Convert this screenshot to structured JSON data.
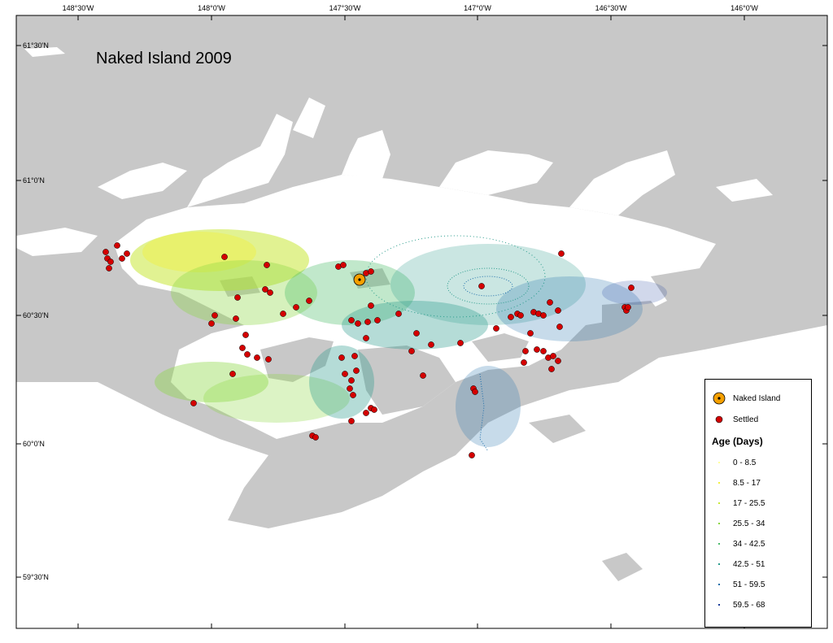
{
  "map": {
    "title": "Naked Island 2009",
    "land_color": "#c8c8c8",
    "water_color": "#ffffff",
    "source_color": "#f5a000",
    "settled_color": "#d40000"
  },
  "axes": {
    "top_ticks": [
      "148°30'W",
      "148°0'W",
      "147°30'W",
      "147°0'W",
      "146°30'W",
      "146°0'W"
    ],
    "left_ticks": [
      "61°30'N",
      "61°0'N",
      "60°30'N",
      "60°0'N",
      "59°30'N"
    ]
  },
  "legend": {
    "source_label": "Naked Island",
    "settled_label": "Settled",
    "age_heading": "Age (Days)",
    "age_classes": [
      {
        "label": "0 - 8.5",
        "color": "#ffffa0"
      },
      {
        "label": "8.5 - 17",
        "color": "#f2f040"
      },
      {
        "label": "17 - 25.5",
        "color": "#c8e838"
      },
      {
        "label": "25.5 - 34",
        "color": "#8ad640"
      },
      {
        "label": "34 - 42.5",
        "color": "#4cbc6a"
      },
      {
        "label": "42.5 - 51",
        "color": "#2a9c8c"
      },
      {
        "label": "51 - 59.5",
        "color": "#1e6eaa"
      },
      {
        "label": "59.5 - 68",
        "color": "#1a3c9a"
      }
    ]
  }
}
